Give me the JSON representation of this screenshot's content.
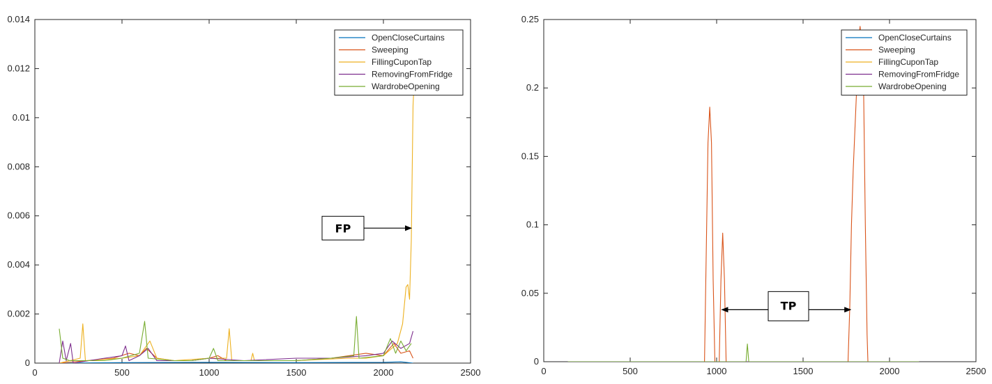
{
  "chart_data": [
    {
      "type": "line",
      "title": "",
      "xlabel": "",
      "ylabel": "",
      "xlim": [
        0,
        2500
      ],
      "ylim": [
        0,
        0.014
      ],
      "xticks": [
        "0",
        "500",
        "1000",
        "1500",
        "2000",
        "2500"
      ],
      "yticks": [
        "0",
        "0.002",
        "0.004",
        "0.006",
        "0.008",
        "0.01",
        "0.012",
        "0.014"
      ],
      "grid": false,
      "legend_placement": "top-right",
      "annotation": {
        "label": "FP",
        "points_to": [
          2160,
          0.0055
        ]
      },
      "series": [
        {
          "name": "OpenCloseCurtains",
          "color": "#0072BD",
          "points": [
            [
              140,
              0
            ],
            [
              500,
              2e-05
            ],
            [
              1000,
              3e-05
            ],
            [
              1500,
              2e-05
            ],
            [
              2000,
              3e-05
            ],
            [
              2100,
              5e-05
            ],
            [
              2170,
              0
            ]
          ]
        },
        {
          "name": "Sweeping",
          "color": "#D95319",
          "points": [
            [
              140,
              0
            ],
            [
              300,
              0.0001
            ],
            [
              450,
              0.0002
            ],
            [
              540,
              0.0004
            ],
            [
              600,
              0.0003
            ],
            [
              640,
              0.0006
            ],
            [
              700,
              0.0002
            ],
            [
              800,
              0.0001
            ],
            [
              900,
              0.0001
            ],
            [
              1000,
              0.0002
            ],
            [
              1050,
              0.0003
            ],
            [
              1100,
              0.0001
            ],
            [
              1300,
              0.0001
            ],
            [
              1500,
              0.0001
            ],
            [
              1700,
              0.0002
            ],
            [
              1900,
              0.0004
            ],
            [
              2000,
              0.0003
            ],
            [
              2060,
              0.0008
            ],
            [
              2100,
              0.0004
            ],
            [
              2150,
              0.0005
            ],
            [
              2170,
              0.0002
            ]
          ]
        },
        {
          "name": "FillingCuponTap",
          "color": "#EDB120",
          "points": [
            [
              140,
              0
            ],
            [
              260,
              0.0002
            ],
            [
              275,
              0.0016
            ],
            [
              290,
              0.0001
            ],
            [
              500,
              0.0002
            ],
            [
              600,
              0.0003
            ],
            [
              660,
              0.0009
            ],
            [
              700,
              0.0002
            ],
            [
              800,
              0.0001
            ],
            [
              1000,
              0.0002
            ],
            [
              1100,
              0.0002
            ],
            [
              1115,
              0.0014
            ],
            [
              1130,
              0.0001
            ],
            [
              1240,
              0.0001
            ],
            [
              1250,
              0.0004
            ],
            [
              1260,
              0.0001
            ],
            [
              1500,
              0.0001
            ],
            [
              1800,
              0.0002
            ],
            [
              1900,
              0.0002
            ],
            [
              2000,
              0.0003
            ],
            [
              2080,
              0.0008
            ],
            [
              2110,
              0.0016
            ],
            [
              2130,
              0.0031
            ],
            [
              2140,
              0.0032
            ],
            [
              2150,
              0.0026
            ],
            [
              2160,
              0.005
            ],
            [
              2170,
              0.0105
            ],
            [
              2180,
              0.012
            ]
          ]
        },
        {
          "name": "RemovingFromFridge",
          "color": "#7E2F8E",
          "points": [
            [
              140,
              0
            ],
            [
              160,
              0.0009
            ],
            [
              180,
              0.0001
            ],
            [
              205,
              0.0008
            ],
            [
              220,
              0
            ],
            [
              400,
              0.0002
            ],
            [
              500,
              0.0003
            ],
            [
              520,
              0.0007
            ],
            [
              540,
              0.0001
            ],
            [
              600,
              0.0003
            ],
            [
              650,
              0.0006
            ],
            [
              700,
              0.0001
            ],
            [
              900,
              0.0001
            ],
            [
              1000,
              0.0002
            ],
            [
              1200,
              0.0001
            ],
            [
              1500,
              0.0002
            ],
            [
              1700,
              0.0002
            ],
            [
              1900,
              0.0003
            ],
            [
              2000,
              0.0004
            ],
            [
              2050,
              0.0009
            ],
            [
              2100,
              0.0006
            ],
            [
              2150,
              0.0008
            ],
            [
              2170,
              0.0013
            ]
          ]
        },
        {
          "name": "WardrobeOpening",
          "color": "#77AC30",
          "points": [
            [
              140,
              0.0014
            ],
            [
              160,
              0.0002
            ],
            [
              200,
              0.0001
            ],
            [
              400,
              0.0001
            ],
            [
              500,
              0.0002
            ],
            [
              600,
              0.0004
            ],
            [
              630,
              0.0017
            ],
            [
              650,
              0.0002
            ],
            [
              800,
              0.0001
            ],
            [
              900,
              0.0001
            ],
            [
              1000,
              0.0002
            ],
            [
              1025,
              0.0006
            ],
            [
              1050,
              0.0001
            ],
            [
              1300,
              0.0001
            ],
            [
              1500,
              0.0001
            ],
            [
              1700,
              0.0002
            ],
            [
              1830,
              0.0003
            ],
            [
              1845,
              0.0019
            ],
            [
              1860,
              0.0002
            ],
            [
              2000,
              0.0003
            ],
            [
              2040,
              0.001
            ],
            [
              2070,
              0.0004
            ],
            [
              2100,
              0.0009
            ],
            [
              2130,
              0.0005
            ],
            [
              2160,
              0.0008
            ]
          ]
        }
      ]
    },
    {
      "type": "line",
      "title": "",
      "xlabel": "",
      "ylabel": "",
      "xlim": [
        0,
        2500
      ],
      "ylim": [
        0,
        0.25
      ],
      "xticks": [
        "0",
        "500",
        "1000",
        "1500",
        "2000",
        "2500"
      ],
      "yticks": [
        "0",
        "0.05",
        "0.1",
        "0.15",
        "0.2",
        "0.25"
      ],
      "grid": false,
      "legend_placement": "top-right",
      "annotation": {
        "label": "TP",
        "points_to": [
          [
            1030,
            0.038
          ],
          [
            1775,
            0.038
          ]
        ]
      },
      "series": [
        {
          "name": "OpenCloseCurtains",
          "color": "#0072BD",
          "points": [
            [
              140,
              0
            ],
            [
              2170,
              0
            ]
          ]
        },
        {
          "name": "Sweeping",
          "color": "#D95319",
          "points": [
            [
              140,
              0
            ],
            [
              930,
              0
            ],
            [
              940,
              0.08
            ],
            [
              950,
              0.16
            ],
            [
              960,
              0.186
            ],
            [
              970,
              0.16
            ],
            [
              980,
              0.06
            ],
            [
              990,
              0
            ],
            [
              1015,
              0
            ],
            [
              1025,
              0.06
            ],
            [
              1035,
              0.094
            ],
            [
              1045,
              0.06
            ],
            [
              1055,
              0
            ],
            [
              1760,
              0
            ],
            [
              1770,
              0.04
            ],
            [
              1780,
              0.1
            ],
            [
              1790,
              0.14
            ],
            [
              1800,
              0.17
            ],
            [
              1810,
              0.2
            ],
            [
              1820,
              0.235
            ],
            [
              1830,
              0.245
            ],
            [
              1840,
              0.23
            ],
            [
              1850,
              0.2
            ],
            [
              1860,
              0.1
            ],
            [
              1870,
              0.02
            ],
            [
              1875,
              0
            ],
            [
              2170,
              0
            ]
          ]
        },
        {
          "name": "FillingCuponTap",
          "color": "#EDB120",
          "points": [
            [
              140,
              0
            ],
            [
              2170,
              0
            ]
          ]
        },
        {
          "name": "RemovingFromFridge",
          "color": "#7E2F8E",
          "points": [
            [
              140,
              0
            ],
            [
              2170,
              0
            ]
          ]
        },
        {
          "name": "WardrobeOpening",
          "color": "#77AC30",
          "points": [
            [
              140,
              0
            ],
            [
              1170,
              0
            ],
            [
              1178,
              0.013
            ],
            [
              1186,
              0
            ],
            [
              2170,
              0
            ]
          ]
        }
      ]
    }
  ]
}
